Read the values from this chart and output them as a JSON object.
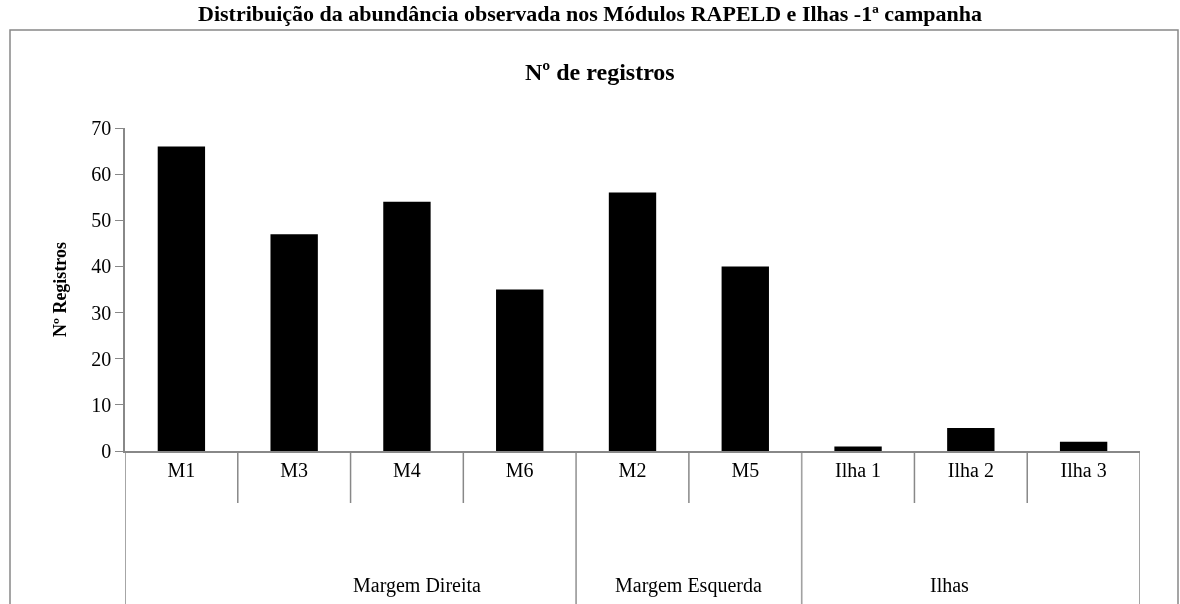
{
  "chart_data": [
    {
      "type": "bar",
      "title": "Distribuição da abundância observada nos Módulos RAPELD e Ilhas -1ª campanha",
      "subtitle": "Nº de registros",
      "ylabel": "Nº Registros",
      "xlabel": "Margem Direita",
      "categories": [
        "M1",
        "M3",
        "M4",
        "M6"
      ],
      "values": [
        66,
        47,
        54,
        35
      ],
      "color": "#000000",
      "ylim": [
        0,
        70
      ],
      "yticks": [
        0,
        10,
        20,
        30,
        40,
        50,
        60,
        70
      ]
    },
    {
      "type": "bar",
      "xlabel": "Margem Esquerda",
      "categories": [
        "M2",
        "M5"
      ],
      "values": [
        56,
        40
      ],
      "color": "#000000",
      "ylim": [
        0,
        70
      ],
      "tick_labels": "x"
    },
    {
      "type": "bar",
      "xlabel": "Ilhas",
      "categories": [
        "Ilha 1",
        "Ilha 2",
        "Ilha 3"
      ],
      "values": [
        1,
        5,
        2
      ],
      "color": "#000000",
      "ylim": [
        0,
        70
      ],
      "tick_labels": "x"
    }
  ]
}
